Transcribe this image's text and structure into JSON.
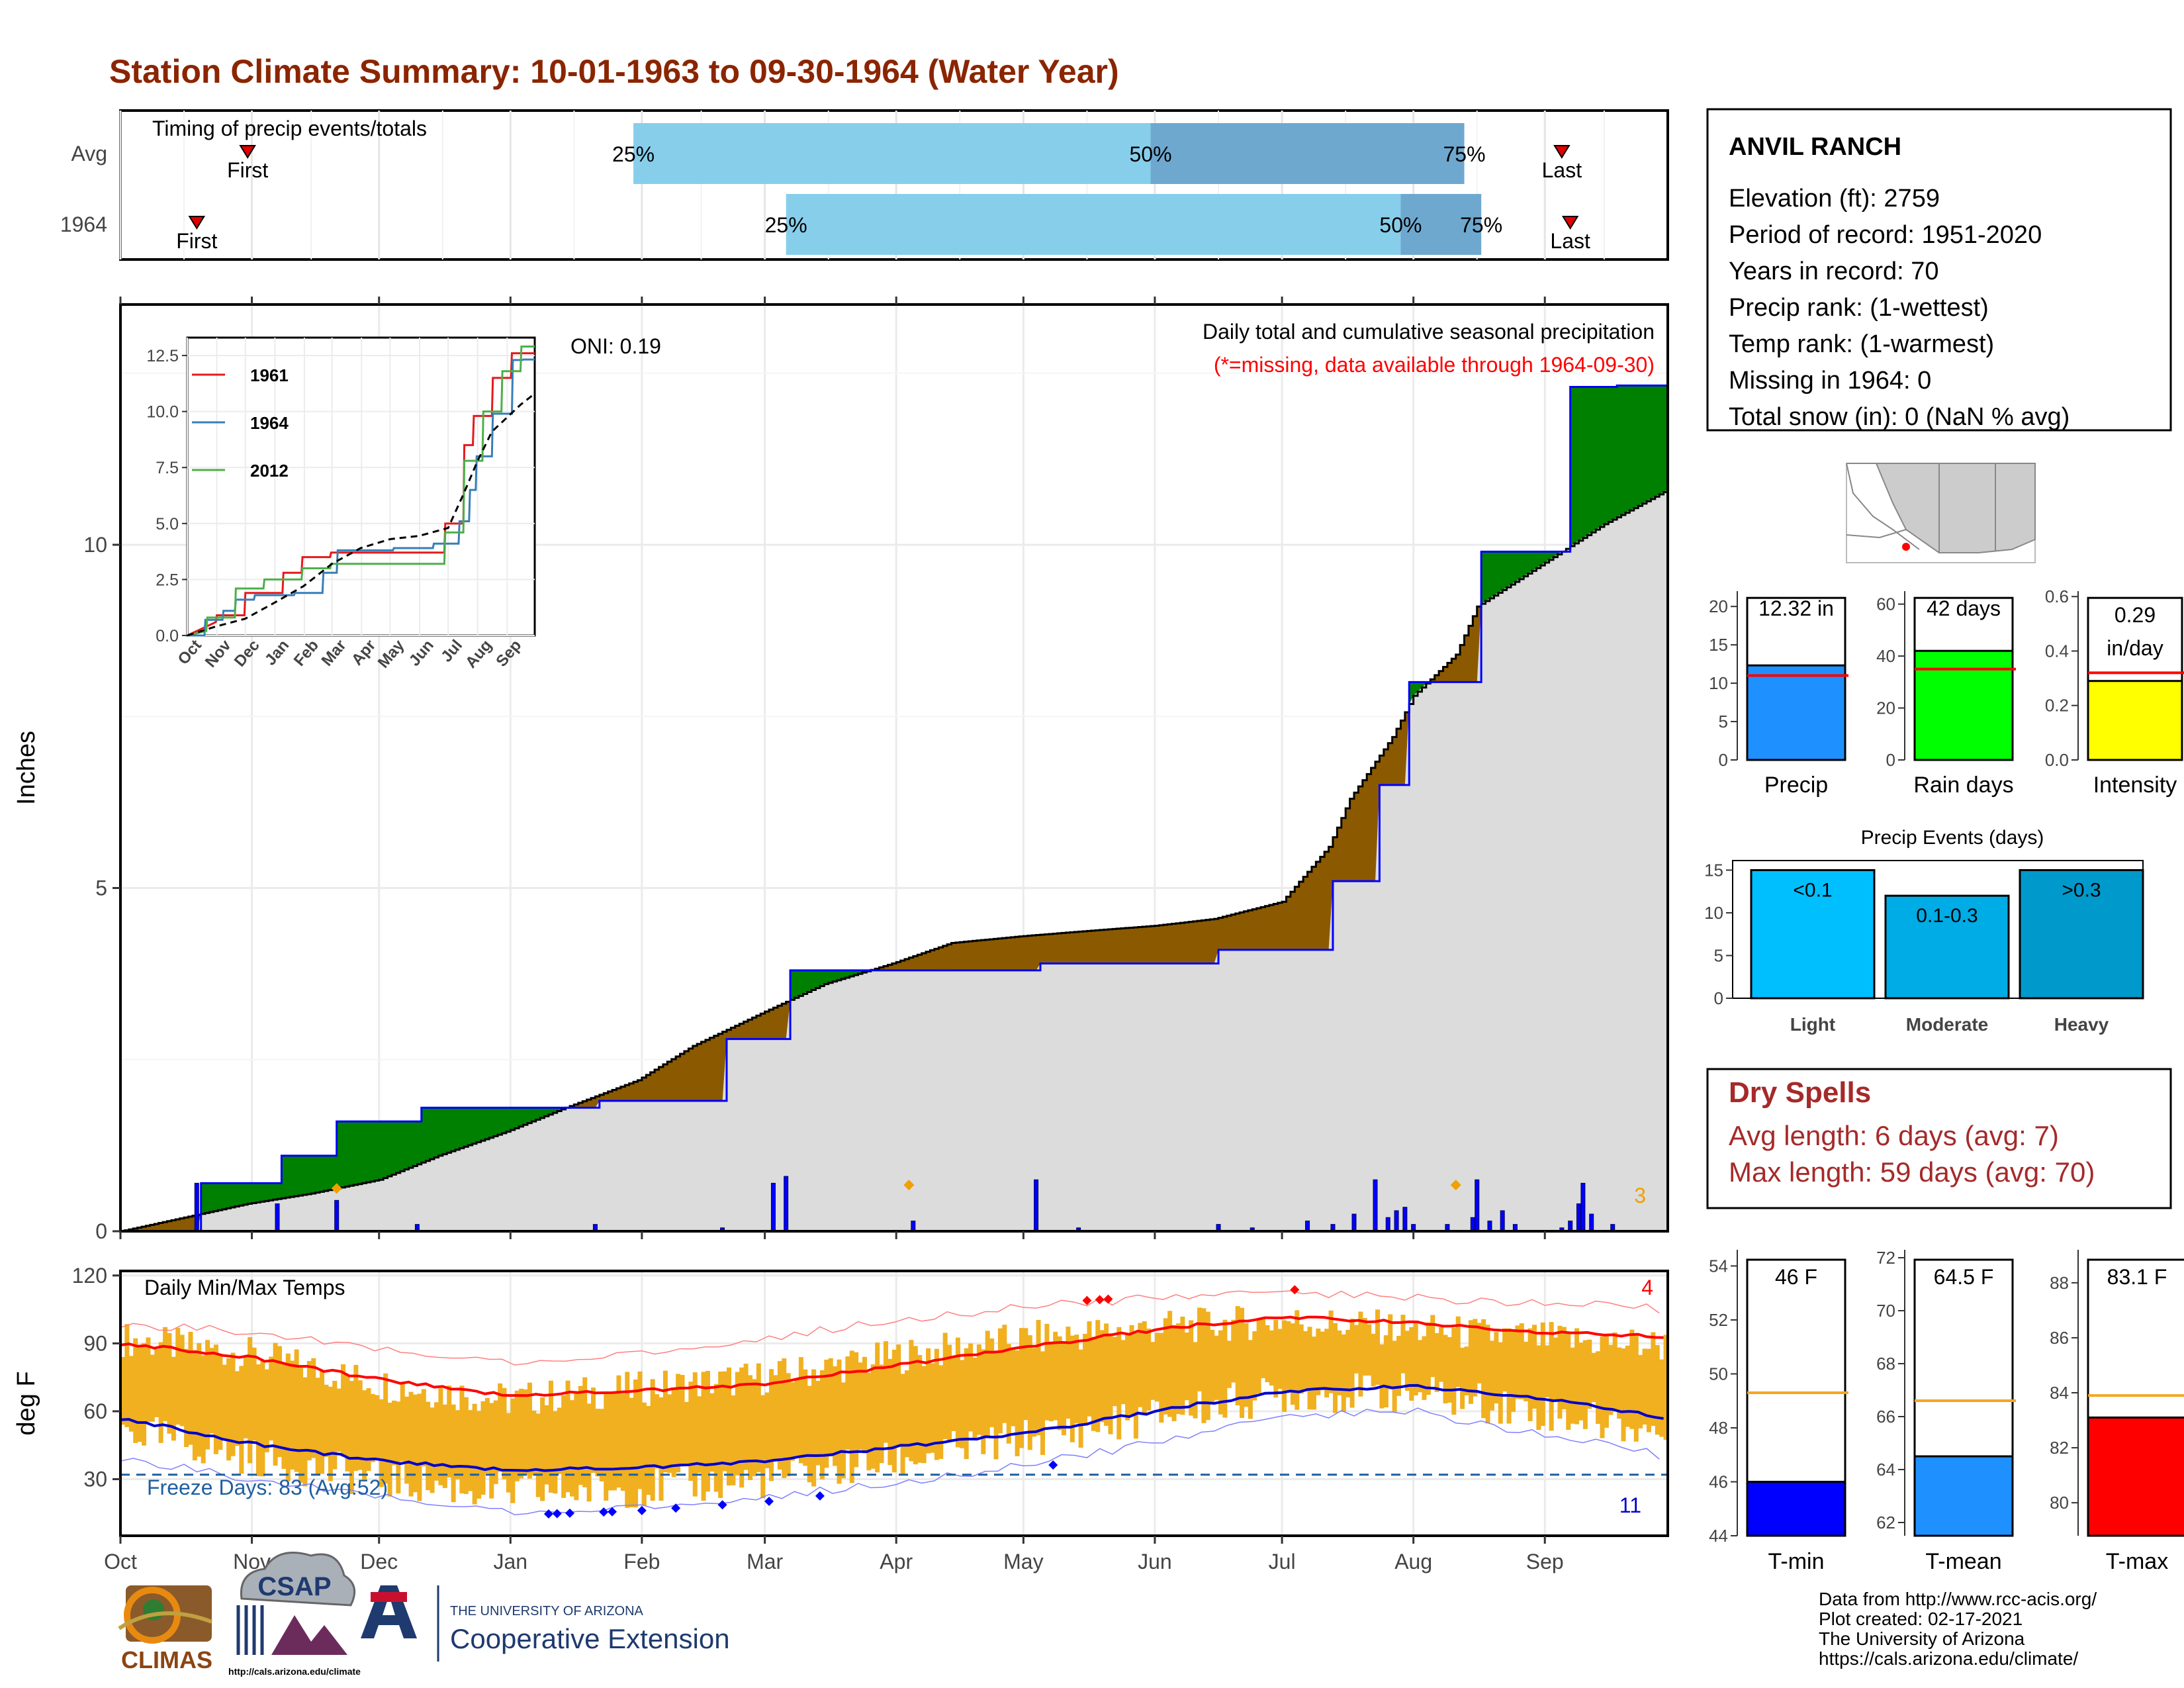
{
  "title": "Station Climate Summary: 10-01-1963 to 09-30-1964 (Water Year)",
  "colors": {
    "title": "#8B2500",
    "cum_avg": "#dcdcdc",
    "deficit": "#8B5A00",
    "surplus": "#008000",
    "obs_line": "#0000ff",
    "bar_quartile": "#87ceeb",
    "bar_quartile_dark": "#6fa8cf",
    "temp_bar": "#f0b020",
    "tmax_line": "#ff0000",
    "tmin_line": "#0000cc",
    "freeze": "#1f5fa0",
    "dry": "#a52a2a",
    "light": "#00bfff",
    "moderate": "#00ace6",
    "heavy": "#0099cc"
  },
  "timing": {
    "label": "Timing of precip events/totals",
    "rows": [
      {
        "name": "Avg",
        "first_label": "First",
        "last_label": "Last",
        "first_day": 30,
        "last_day": 340,
        "q25_day": 121,
        "q50_day": 243,
        "q75_day": 317,
        "q25_label": "25%",
        "q50_label": "50%",
        "q75_label": "75%"
      },
      {
        "name": "1964",
        "first_label": "First",
        "last_label": "Last",
        "first_day": 18,
        "last_day": 342,
        "q25_day": 157,
        "q50_day": 302,
        "q75_day": 321,
        "q25_label": "25%",
        "q50_label": "50%",
        "q75_label": "75%"
      }
    ]
  },
  "station": {
    "name": "ANVIL RANCH",
    "lines": [
      "Elevation (ft): 2759",
      "Period of record: 1951-2020",
      "Years in record: 70",
      "Precip rank:  (1-wettest)",
      "Temp rank:  (1-warmest)",
      "Missing in 1964: 0",
      "Total snow (in): 0 (NaN % avg)"
    ]
  },
  "precip": {
    "ylabel": "Inches",
    "yticks": [
      "0",
      "5",
      "10"
    ],
    "oni": "ONI: 0.19",
    "note1": "Daily total and cumulative seasonal precipitation",
    "note2": "(*=missing, data available through 1964-09-30)",
    "extreme_count": "3",
    "chart_data": {
      "type": "area",
      "x_unit": "day of water year",
      "ylim": [
        0,
        13.5
      ],
      "avg_cumulative": {
        "x": [
          0,
          15,
          30,
          45,
          61,
          75,
          91,
          105,
          122,
          135,
          152,
          166,
          182,
          196,
          213,
          227,
          244,
          258,
          274,
          285,
          290,
          300,
          305,
          315,
          320,
          335,
          350,
          365
        ],
        "y": [
          0,
          0.2,
          0.4,
          0.55,
          0.75,
          1.1,
          1.45,
          1.8,
          2.2,
          2.7,
          3.2,
          3.6,
          3.9,
          4.2,
          4.3,
          4.37,
          4.45,
          4.55,
          4.8,
          5.6,
          6.3,
          7.2,
          7.8,
          8.4,
          9.1,
          9.7,
          10.3,
          10.8
        ]
      },
      "obs_cumulative": {
        "x": [
          0,
          18,
          19,
          37,
          38,
          50,
          51,
          70,
          71,
          112,
          113,
          142,
          143,
          157,
          158,
          216,
          217,
          258,
          259,
          285,
          286,
          296,
          297,
          303,
          304,
          320,
          321,
          341,
          342,
          352,
          353,
          365
        ],
        "y": [
          0,
          0,
          0.7,
          0.7,
          1.1,
          1.1,
          1.6,
          1.6,
          1.8,
          1.8,
          1.9,
          1.9,
          2.8,
          2.8,
          3.8,
          3.8,
          3.9,
          3.9,
          4.1,
          4.1,
          5.1,
          5.1,
          6.5,
          6.5,
          8.0,
          8.0,
          9.9,
          9.9,
          12.3,
          12.3,
          12.32,
          12.32
        ]
      },
      "daily_bars": [
        [
          18,
          0.7
        ],
        [
          37,
          0.4
        ],
        [
          51,
          0.45
        ],
        [
          70,
          0.1
        ],
        [
          112,
          0.1
        ],
        [
          142,
          0.05
        ],
        [
          154,
          0.7
        ],
        [
          157,
          0.8
        ],
        [
          187,
          0.15
        ],
        [
          216,
          0.75
        ],
        [
          226,
          0.05
        ],
        [
          259,
          0.1
        ],
        [
          267,
          0.05
        ],
        [
          286,
          0.1
        ],
        [
          280,
          0.15
        ],
        [
          291,
          0.25
        ],
        [
          296,
          0.75
        ],
        [
          299,
          0.2
        ],
        [
          301,
          0.3
        ],
        [
          303,
          0.35
        ],
        [
          305,
          0.1
        ],
        [
          313,
          0.1
        ],
        [
          319,
          0.2
        ],
        [
          320,
          0.75
        ],
        [
          323,
          0.15
        ],
        [
          326,
          0.3
        ],
        [
          329,
          0.1
        ],
        [
          340,
          0.05
        ],
        [
          342,
          0.15
        ],
        [
          344,
          0.4
        ],
        [
          345,
          0.7
        ],
        [
          347,
          0.25
        ],
        [
          352,
          0.1
        ]
      ],
      "extreme_days": [
        51,
        186,
        315
      ]
    },
    "inset": {
      "yticks": [
        "0.0",
        "2.5",
        "5.0",
        "7.5",
        "10.0",
        "12.5"
      ],
      "months": [
        "Oct",
        "Nov",
        "Dec",
        "Jan",
        "Feb",
        "Mar",
        "Apr",
        "May",
        "Jun",
        "Jul",
        "Aug",
        "Sep"
      ],
      "legend": [
        {
          "name": "1961",
          "color": "#e41a1c"
        },
        {
          "name": "1964",
          "color": "#377eb8"
        },
        {
          "name": "2012",
          "color": "#4daf4a"
        }
      ],
      "series": [
        {
          "name": "1961",
          "x": [
            0,
            30,
            31,
            60,
            61,
            100,
            101,
            120,
            121,
            150,
            151,
            270,
            271,
            290,
            291,
            300,
            301,
            320,
            321,
            340,
            341,
            365
          ],
          "y": [
            0,
            0.6,
            0.9,
            0.9,
            1.9,
            1.9,
            2.8,
            2.8,
            3.5,
            3.5,
            3.7,
            3.7,
            5.0,
            5.0,
            8.5,
            8.5,
            9.8,
            9.8,
            11.5,
            11.5,
            12.6,
            12.6
          ]
        },
        {
          "name": "1964",
          "x": [
            0,
            18,
            19,
            37,
            38,
            50,
            51,
            70,
            71,
            112,
            113,
            142,
            143,
            157,
            158,
            216,
            217,
            258,
            259,
            285,
            286,
            296,
            297,
            303,
            304,
            320,
            321,
            341,
            342,
            352,
            353,
            365
          ],
          "y": [
            0,
            0,
            0.7,
            0.7,
            1.1,
            1.1,
            1.6,
            1.6,
            1.8,
            1.8,
            1.9,
            1.9,
            2.8,
            2.8,
            3.8,
            3.8,
            3.9,
            3.9,
            4.1,
            4.1,
            5.1,
            5.1,
            6.5,
            6.5,
            8.0,
            8.0,
            9.9,
            9.9,
            12.3,
            12.3,
            12.32,
            12.32
          ]
        },
        {
          "name": "2012",
          "x": [
            0,
            20,
            21,
            50,
            51,
            80,
            81,
            120,
            121,
            150,
            151,
            270,
            271,
            290,
            291,
            310,
            311,
            330,
            331,
            350,
            351,
            365
          ],
          "y": [
            0,
            0.2,
            0.8,
            0.8,
            2.1,
            2.1,
            2.5,
            2.5,
            3.0,
            3.0,
            3.2,
            3.2,
            4.6,
            4.6,
            7.8,
            7.8,
            10.0,
            10.0,
            11.8,
            11.8,
            12.9,
            12.9
          ]
        },
        {
          "name": "avg",
          "x": [
            0,
            30,
            61,
            91,
            122,
            152,
            182,
            213,
            244,
            274,
            290,
            305,
            320,
            335,
            350,
            365
          ],
          "y": [
            0,
            0.4,
            0.75,
            1.45,
            2.2,
            3.2,
            3.9,
            4.3,
            4.45,
            4.8,
            6.3,
            7.8,
            9.1,
            9.7,
            10.3,
            10.8
          ]
        }
      ]
    }
  },
  "temps": {
    "ylabel": "deg F",
    "label": "Daily Min/Max Temps",
    "yticks": [
      "30",
      "60",
      "90",
      "120"
    ],
    "freeze_label": "Freeze Days: 83 (Avg:52)",
    "hot_count": "4",
    "cold_count": "11",
    "months": [
      "Oct",
      "Nov",
      "Dec",
      "Jan",
      "Feb",
      "Mar",
      "Apr",
      "May",
      "Jun",
      "Jul",
      "Aug",
      "Sep"
    ],
    "chart_data": {
      "type": "line",
      "ylim": [
        5,
        122
      ],
      "freeze_line": 32,
      "avg_tmax": {
        "x": [
          0,
          30,
          61,
          91,
          122,
          152,
          182,
          213,
          244,
          274,
          305,
          335,
          365
        ],
        "y": [
          90,
          84,
          74,
          67,
          69,
          72,
          80,
          88,
          96,
          102,
          99,
          95,
          93
        ]
      },
      "avg_tmin": {
        "x": [
          0,
          30,
          61,
          91,
          122,
          152,
          182,
          213,
          244,
          274,
          305,
          335,
          365
        ],
        "y": [
          57,
          46,
          38,
          34,
          35,
          38,
          44,
          50,
          60,
          69,
          71,
          66,
          57
        ]
      },
      "rec_tmax": {
        "x": [
          0,
          30,
          61,
          91,
          122,
          152,
          182,
          213,
          244,
          274,
          305,
          335,
          365
        ],
        "y": [
          99,
          95,
          87,
          82,
          86,
          92,
          100,
          106,
          110,
          113,
          110,
          108,
          105
        ]
      },
      "rec_tmin": {
        "x": [
          0,
          30,
          61,
          91,
          122,
          152,
          182,
          213,
          244,
          274,
          305,
          335,
          365
        ],
        "y": [
          40,
          30,
          22,
          16,
          18,
          22,
          28,
          36,
          46,
          58,
          60,
          50,
          40
        ]
      },
      "obs_tmax_base": {
        "x": [
          0,
          30,
          61,
          91,
          122,
          152,
          182,
          213,
          244,
          274,
          305,
          335,
          365
        ],
        "y": [
          92,
          85,
          72,
          65,
          70,
          75,
          84,
          92,
          97,
          100,
          96,
          92,
          89
        ]
      },
      "obs_tmin_base": {
        "x": [
          0,
          30,
          61,
          91,
          122,
          152,
          182,
          213,
          244,
          274,
          305,
          335,
          365
        ],
        "y": [
          52,
          40,
          30,
          24,
          26,
          30,
          38,
          48,
          58,
          68,
          68,
          60,
          50
        ]
      },
      "hot_days": [
        228,
        231,
        233,
        277
      ],
      "cold_days": [
        101,
        103,
        106,
        114,
        116,
        123,
        131,
        142,
        153,
        165,
        220
      ]
    }
  },
  "stats": {
    "precip": {
      "value_label": "12.32 in",
      "name": "Precip",
      "value": 12.32,
      "avg": 11.0,
      "ymax": 22,
      "yticks": [
        "0",
        "5",
        "10",
        "15",
        "20"
      ]
    },
    "rain_days": {
      "value_label": "42 days",
      "name": "Rain days",
      "value": 42,
      "avg": 35,
      "ymax": 65,
      "yticks": [
        "0",
        "20",
        "40",
        "60"
      ]
    },
    "intensity": {
      "value_label_1": "0.29",
      "value_label_2": "in/day",
      "name": "Intensity",
      "value": 0.29,
      "avg": 0.32,
      "ymax": 0.62,
      "yticks": [
        "0.0",
        "0.2",
        "0.4",
        "0.6"
      ]
    }
  },
  "events": {
    "title": "Precip Events (days)",
    "yticks": [
      "0",
      "5",
      "10",
      "15"
    ],
    "bars": [
      {
        "name": "Light",
        "label": "<0.1",
        "value": 15
      },
      {
        "name": "Moderate",
        "label": "0.1-0.3",
        "value": 12
      },
      {
        "name": "Heavy",
        "label": ">0.3",
        "value": 15
      }
    ]
  },
  "dry_spells": {
    "title": "Dry Spells",
    "avg_line": "Avg length: 6 days (avg: 7)",
    "max_line": "Max length: 59 days (avg: 70)"
  },
  "temp_stats": [
    {
      "label": "46 F",
      "name": "T-min",
      "value": 46,
      "avg": 49.3,
      "ylim": [
        44,
        54.6
      ],
      "yticks": [
        "44",
        "46",
        "48",
        "50",
        "52",
        "54"
      ],
      "color": "#0000ff"
    },
    {
      "label": "64.5 F",
      "name": "T-mean",
      "value": 64.5,
      "avg": 66.6,
      "ylim": [
        61.5,
        72.3
      ],
      "yticks": [
        "62",
        "64",
        "66",
        "68",
        "70",
        "72"
      ],
      "color": "#1e90ff"
    },
    {
      "label": "83.1 F",
      "name": "T-max",
      "value": 83.1,
      "avg": 83.9,
      "ylim": [
        78.8,
        89.2
      ],
      "yticks": [
        "80",
        "82",
        "84",
        "86",
        "88"
      ],
      "color": "#ff0000"
    }
  ],
  "footer": {
    "lines": [
      "Data from http://www.rcc-acis.org/",
      "Plot created: 02-17-2021",
      "The University of Arizona",
      "https://cals.arizona.edu/climate/"
    ],
    "climas": "CLIMAS",
    "csap": "CSAP",
    "csap_url": "http://cals.arizona.edu/climate",
    "ua_small": "THE UNIVERSITY OF ARIZONA",
    "ua_big": "Cooperative Extension"
  }
}
